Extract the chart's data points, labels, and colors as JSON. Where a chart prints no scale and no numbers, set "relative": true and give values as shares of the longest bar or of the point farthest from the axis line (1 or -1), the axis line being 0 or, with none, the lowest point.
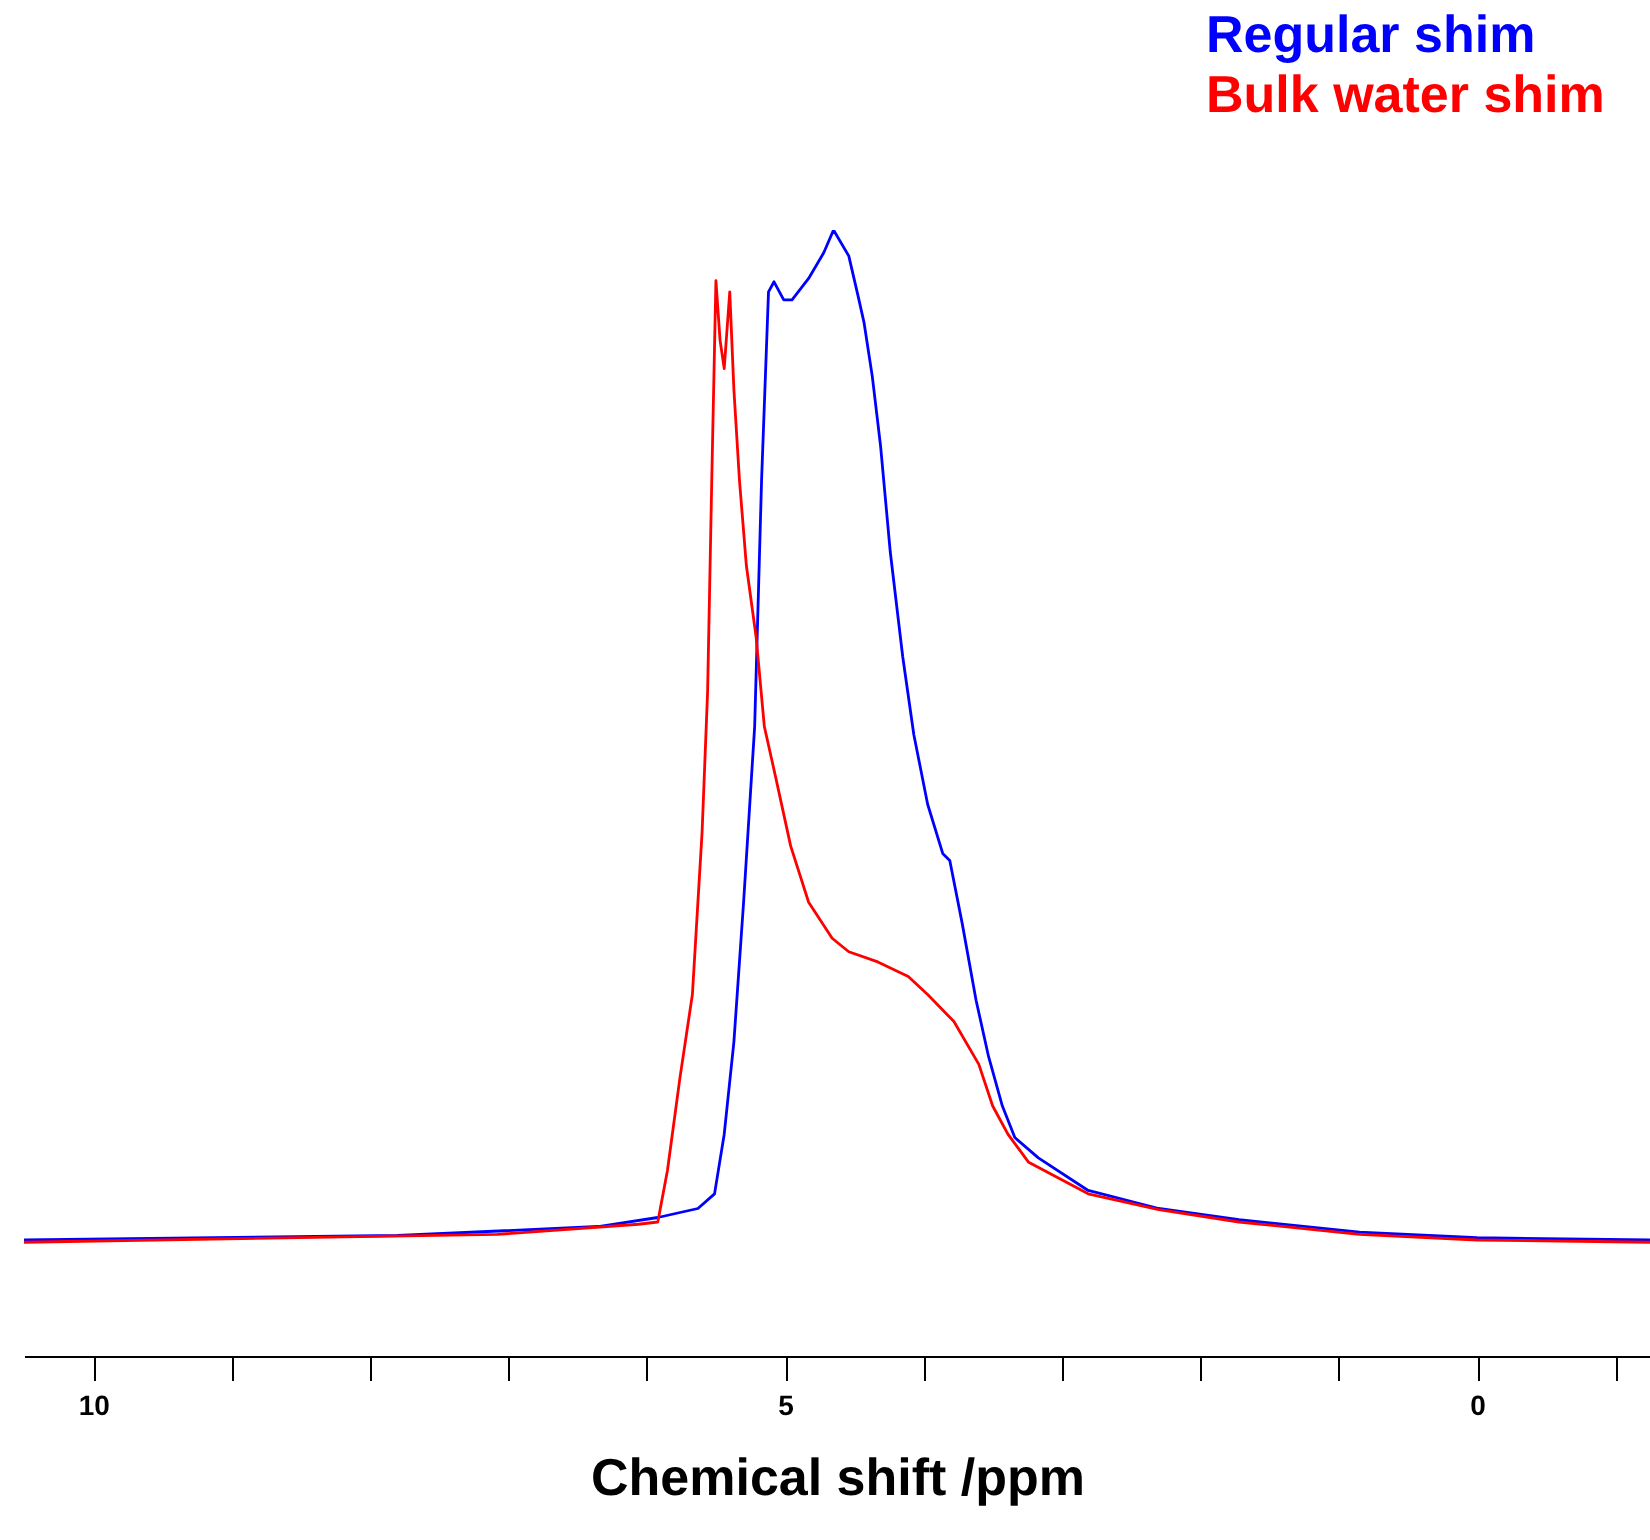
{
  "chart_data": {
    "type": "line",
    "xlabel": "Chemical shift /ppm",
    "relative": true,
    "legend": "top right",
    "xlim": [
      10.5,
      -1.25
    ],
    "xticks": [
      10,
      {
        "value": 9,
        "label": null
      },
      {
        "value": 8,
        "label": null
      },
      {
        "value": 7,
        "label": null
      },
      {
        "value": 6,
        "label": null
      },
      5,
      {
        "value": 4,
        "label": null
      },
      {
        "value": 3,
        "label": null
      },
      {
        "value": 2,
        "label": null
      },
      {
        "value": 1,
        "label": null
      },
      0,
      {
        "value": -1,
        "label": null
      }
    ],
    "series": [
      {
        "name": "Regular shim",
        "color": "#0000ff",
        "x": [
          10.5,
          7.8,
          6.35,
          5.92,
          5.63,
          5.51,
          5.44,
          5.37,
          5.3,
          5.22,
          5.17,
          5.12,
          5.08,
          5.01,
          4.95,
          4.83,
          4.72,
          4.65,
          4.54,
          4.47,
          4.43,
          4.37,
          4.31,
          4.24,
          4.15,
          4.07,
          3.97,
          3.86,
          3.81,
          3.72,
          3.62,
          3.53,
          3.43,
          3.34,
          3.17,
          2.81,
          2.3,
          1.72,
          0.85,
          0,
          -1.25
        ],
        "values": [
          0.103,
          0.107,
          0.115,
          0.123,
          0.131,
          0.144,
          0.197,
          0.279,
          0.403,
          0.559,
          0.778,
          0.945,
          0.954,
          0.938,
          0.938,
          0.957,
          0.98,
          1.0,
          0.977,
          0.94,
          0.918,
          0.87,
          0.808,
          0.714,
          0.621,
          0.552,
          0.49,
          0.446,
          0.44,
          0.384,
          0.316,
          0.266,
          0.222,
          0.194,
          0.176,
          0.147,
          0.131,
          0.121,
          0.11,
          0.105,
          0.103
        ]
      },
      {
        "name": "Bulk water shim",
        "color": "#ff0000",
        "x": [
          10.5,
          7.08,
          6.06,
          5.92,
          5.85,
          5.76,
          5.67,
          5.6,
          5.56,
          5.53,
          5.5,
          5.47,
          5.44,
          5.4,
          5.37,
          5.33,
          5.28,
          5.21,
          5.15,
          5.07,
          4.96,
          4.83,
          4.66,
          4.54,
          4.33,
          4.11,
          3.97,
          3.78,
          3.6,
          3.5,
          3.39,
          3.24,
          2.81,
          2.3,
          1.72,
          0.85,
          0,
          -1.25
        ],
        "values": [
          0.101,
          0.108,
          0.117,
          0.119,
          0.165,
          0.247,
          0.321,
          0.465,
          0.59,
          0.778,
          0.955,
          0.902,
          0.877,
          0.945,
          0.858,
          0.778,
          0.702,
          0.639,
          0.559,
          0.515,
          0.453,
          0.403,
          0.371,
          0.359,
          0.35,
          0.337,
          0.321,
          0.297,
          0.259,
          0.222,
          0.197,
          0.172,
          0.144,
          0.13,
          0.119,
          0.108,
          0.103,
          0.101
        ]
      }
    ]
  }
}
